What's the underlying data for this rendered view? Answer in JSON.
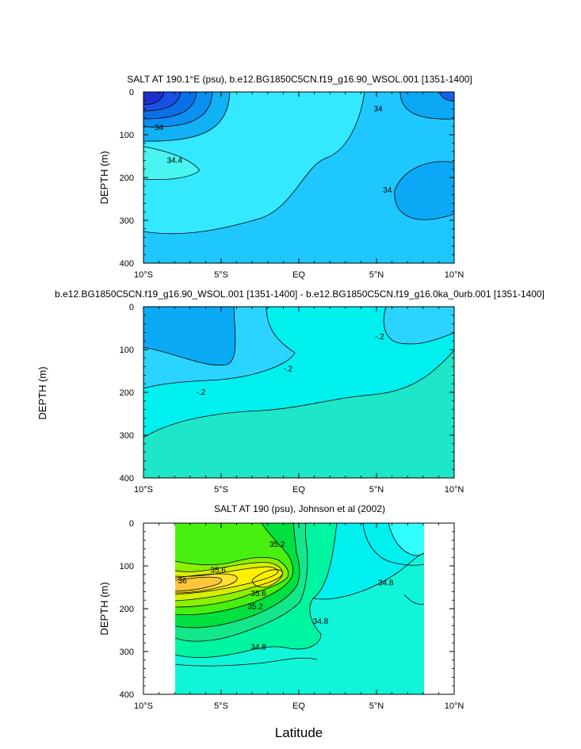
{
  "chart_data": [
    {
      "type": "contour",
      "title": "SALT AT 190.1°E (psu), b.e12.BG1850C5CN.f19_g16.90_WSOL.001 [1351-1400]",
      "xlabel": "",
      "ylabel": "DEPTH (m)",
      "xlim": [
        -10,
        10
      ],
      "ylim": [
        400,
        0
      ],
      "xticks": [
        "10°S",
        "5°S",
        "EQ",
        "5°N",
        "10°N"
      ],
      "yticks": [
        "0",
        "100",
        "200",
        "300",
        "400"
      ],
      "contour_labels": [
        {
          "text": "34",
          "lat": -9,
          "depth": 83
        },
        {
          "text": "34.4",
          "lat": -8,
          "depth": 160
        },
        {
          "text": "34",
          "lat": 5.1,
          "depth": 40
        },
        {
          "text": "34",
          "lat": 5.7,
          "depth": 230
        }
      ]
    },
    {
      "type": "contour",
      "title": "b.e12.BG1850C5CN.f19_g16.90_WSOL.001 [1351-1400] - b.e12.BG1850C5CN.f19_g16.0ka_0urb.001 [1351-1400]",
      "xlabel": "",
      "ylabel": "DEPTH (m)",
      "xlim": [
        -10,
        10
      ],
      "ylim": [
        400,
        0
      ],
      "xticks": [
        "10°S",
        "5°S",
        "EQ",
        "5°N",
        "10°N"
      ],
      "yticks": [
        "0",
        "100",
        "200",
        "300",
        "400"
      ],
      "contour_labels": [
        {
          "text": "-.2",
          "lat": -6.3,
          "depth": 200
        },
        {
          "text": "-.2",
          "lat": -0.7,
          "depth": 145
        },
        {
          "text": "-.2",
          "lat": 5.2,
          "depth": 70
        }
      ]
    },
    {
      "type": "contour",
      "title": "SALT AT 190 (psu), Johnson et al (2002)",
      "xlabel": "Latitude",
      "ylabel": "DEPTH (m)",
      "xlim": [
        -10,
        10
      ],
      "ylim": [
        400,
        0
      ],
      "xticks": [
        "10°S",
        "5°S",
        "EQ",
        "5°N",
        "10°N"
      ],
      "yticks": [
        "0",
        "100",
        "200",
        "300",
        "400"
      ],
      "data_lat_range": [
        -8,
        8
      ],
      "contour_labels": [
        {
          "text": "35.2",
          "lat": -1.4,
          "depth": 50
        },
        {
          "text": "35.6",
          "lat": -5.2,
          "depth": 110
        },
        {
          "text": "36",
          "lat": -7.5,
          "depth": 135
        },
        {
          "text": "35.6",
          "lat": -2.6,
          "depth": 165
        },
        {
          "text": "35.2",
          "lat": -2.8,
          "depth": 195
        },
        {
          "text": "34.8",
          "lat": 1.4,
          "depth": 230
        },
        {
          "text": "34.8",
          "lat": 5.6,
          "depth": 140
        },
        {
          "text": "34.8",
          "lat": -2.6,
          "depth": 290
        }
      ]
    }
  ]
}
